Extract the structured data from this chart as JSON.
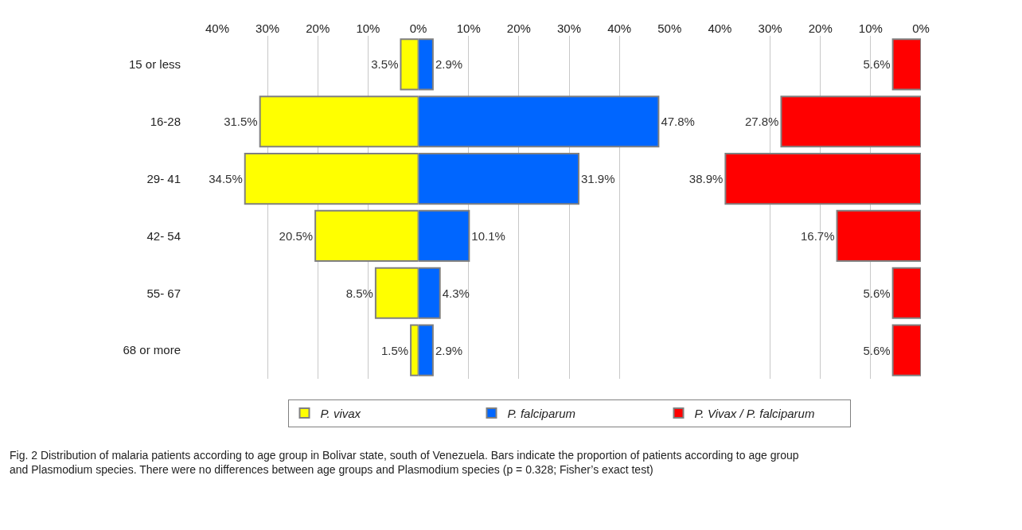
{
  "chart_data": [
    {
      "type": "bar",
      "orientation": "horizontal",
      "categories": [
        "15 or less",
        "16-28",
        "29- 41",
        "42- 54",
        "55- 67",
        "68 or more"
      ],
      "series": [
        {
          "name": "P. vivax",
          "color": "#ffff00",
          "values": [
            3.5,
            31.5,
            34.5,
            20.5,
            8.5,
            1.5
          ],
          "value_labels": [
            "3.5%",
            "31.5%",
            "34.5%",
            "20.5%",
            "8.5%",
            "1.5%"
          ]
        }
      ],
      "xlim": [
        40,
        0
      ],
      "xticks": [
        {
          "value": 40,
          "label": "40%"
        },
        {
          "value": 30,
          "label": "30%"
        },
        {
          "value": 20,
          "label": "20%"
        },
        {
          "value": 10,
          "label": "10%"
        },
        {
          "value": 0,
          "label": "0%"
        }
      ],
      "grid": "x",
      "legend": "bottom",
      "annotations": [
        "Fig. 2 Distribution of malaria patients according to age group in Bolivar state, south of Venezuela. Bars indicate the proportion of patients according to age group and Plasmodium species. There were no differences between age groups and Plasmodium species (p = 0.328; Fisher’s exact test)"
      ]
    },
    {
      "type": "bar",
      "orientation": "horizontal",
      "categories": [
        "15 or less",
        "16-28",
        "29- 41",
        "42- 54",
        "55- 67",
        "68 or more"
      ],
      "series": [
        {
          "name": "P. falciparum",
          "color": "#0066ff",
          "values": [
            2.9,
            47.8,
            31.9,
            10.1,
            4.3,
            2.9
          ],
          "value_labels": [
            "2.9%",
            "47.8%",
            "31.9%",
            "10.1%",
            "4.3%",
            "2.9%"
          ]
        }
      ],
      "xlim": [
        0,
        50
      ],
      "xticks": [
        {
          "value": 10,
          "label": "10%"
        },
        {
          "value": 20,
          "label": "20%"
        },
        {
          "value": 30,
          "label": "30%"
        },
        {
          "value": 40,
          "label": "40%"
        },
        {
          "value": 50,
          "label": "50%"
        }
      ],
      "grid": "x",
      "legend": "bottom",
      "tick_labels": "x"
    },
    {
      "type": "bar",
      "orientation": "horizontal",
      "categories": [
        "15 or less",
        "16-28",
        "29- 41",
        "42- 54",
        "55- 67",
        "68 or more"
      ],
      "series": [
        {
          "name": "P. Vivax / P. falciparum",
          "color": "#ff0000",
          "values": [
            5.6,
            27.8,
            38.9,
            16.7,
            5.6,
            5.6
          ],
          "value_labels": [
            "5.6%",
            "27.8%",
            "38.9%",
            "16.7%",
            "5.6%",
            "5.6%"
          ]
        }
      ],
      "xlim": [
        40,
        0
      ],
      "xticks": [
        {
          "value": 40,
          "label": "40%"
        },
        {
          "value": 30,
          "label": "30%"
        },
        {
          "value": 20,
          "label": "20%"
        },
        {
          "value": 10,
          "label": "10%"
        },
        {
          "value": 0,
          "label": "0%"
        }
      ],
      "grid": "x",
      "legend": "bottom",
      "tick_labels": "x"
    }
  ]
}
